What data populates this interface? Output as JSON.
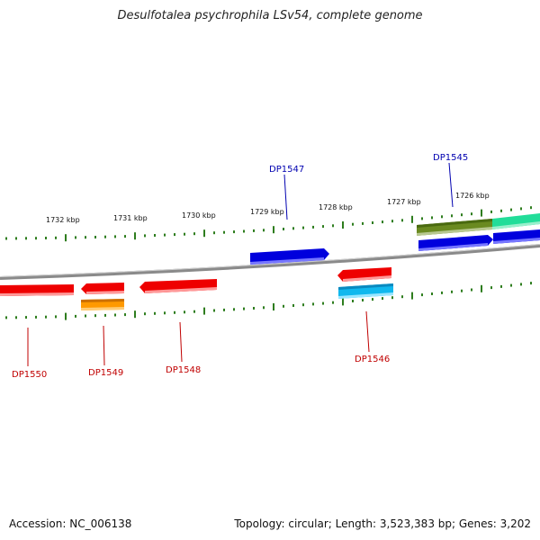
{
  "title": "Desulfotalea psychrophila LSv54, complete genome",
  "footer": {
    "accession": "Accession: NC_006138",
    "summary": "Topology: circular; Length: 3,523,383 bp; Genes: 3,202"
  },
  "scale_labels": [
    "1732 kbp",
    "1731 kbp",
    "1730 kbp",
    "1729 kbp",
    "1728 kbp",
    "1727 kbp",
    "1726 kbp"
  ],
  "gene_labels": {
    "top": [
      "DP1547",
      "DP1545"
    ],
    "bottom": [
      "DP1550",
      "DP1549",
      "DP1548",
      "DP1546"
    ]
  },
  "colors": {
    "top_label": "#0000b0",
    "bottom_label": "#c00000",
    "tick": "#2e7d1e",
    "backbone": "#8a8a8a",
    "gene_red": "#ee0000",
    "gene_orange": "#ff9900",
    "gene_blue": "#0000dd",
    "gene_cyan": "#10b8ee",
    "gene_olive": "#6a8a20",
    "gene_green": "#22dd99"
  }
}
